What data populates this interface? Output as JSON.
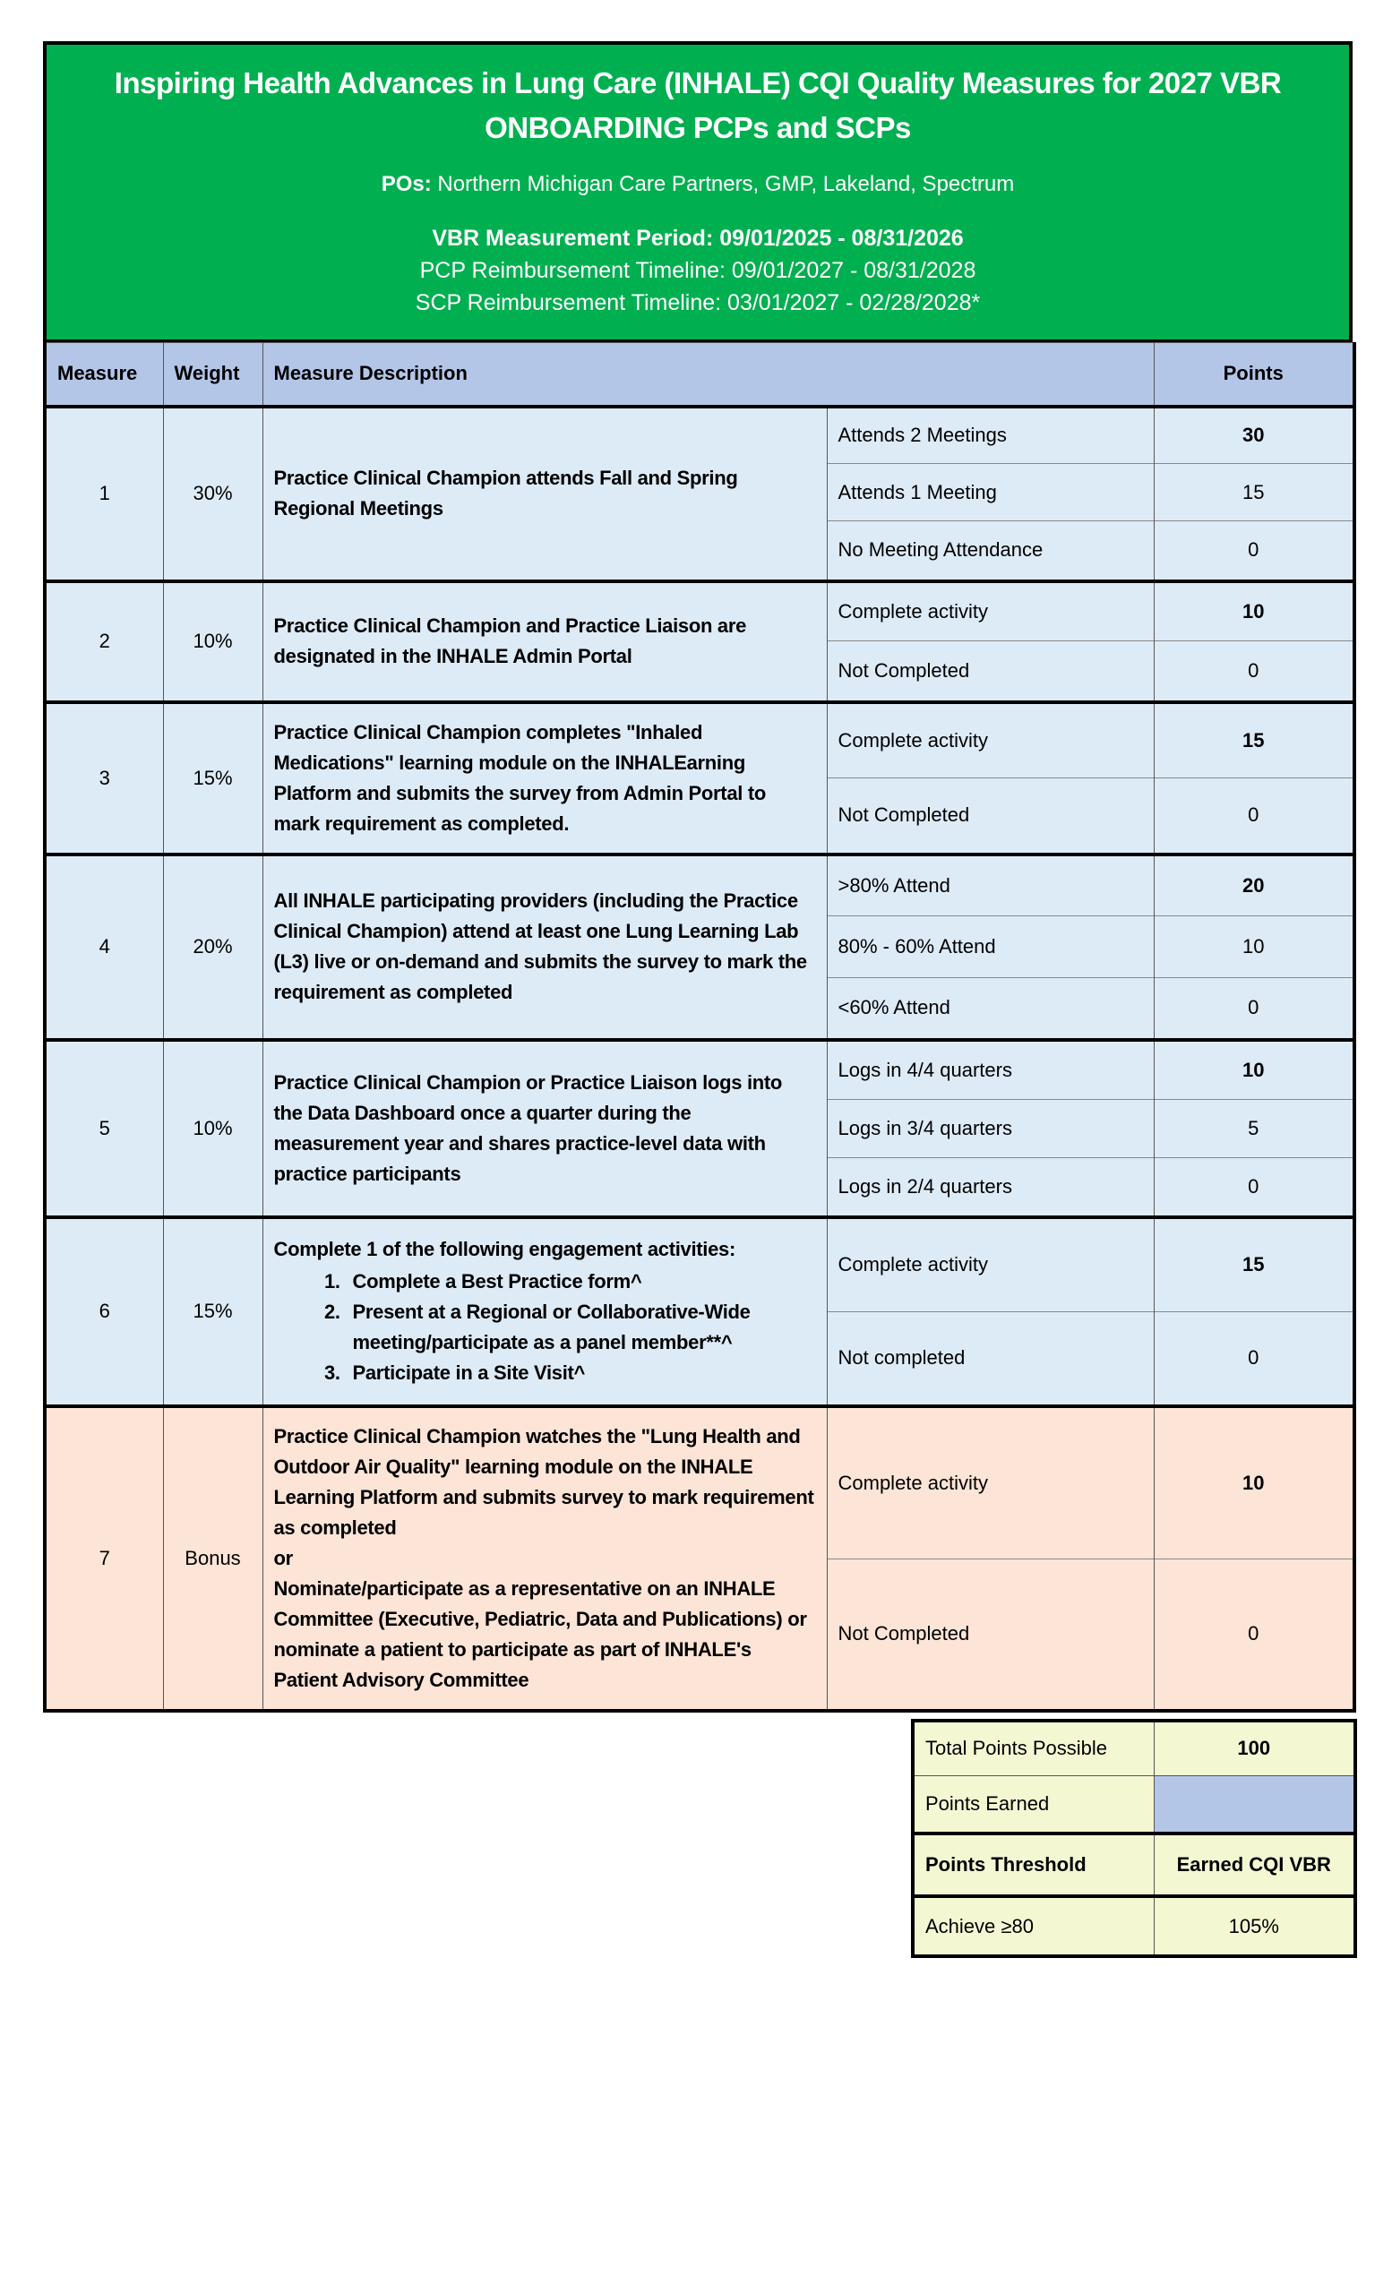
{
  "header": {
    "title": "Inspiring Health Advances in Lung Care (INHALE) CQI Quality Measures for 2027 VBR ONBOARDING PCPs and SCPs",
    "pos_label": "POs:",
    "pos_value": "Northern Michigan Care Partners, GMP, Lakeland, Spectrum",
    "measurement_period": "VBR Measurement Period: 09/01/2025 - 08/31/2026",
    "pcp_timeline": "PCP Reimbursement Timeline: 09/01/2027 - 08/31/2028",
    "scp_timeline": "SCP Reimbursement Timeline: 03/01/2027 - 02/28/2028*"
  },
  "columns": {
    "measure": "Measure",
    "weight": "Weight",
    "description": "Measure Description",
    "points": "Points"
  },
  "colors": {
    "header_green": "#00AF50",
    "column_header_blue": "#B4C6E7",
    "row_blue": "#DDEBF7",
    "bonus_peach": "#FCE4D6",
    "totals_yellow": "#F3F8D3"
  },
  "measures": [
    {
      "measure": "1",
      "weight": "30%",
      "style": "blue",
      "description": {
        "paragraphs": [
          "Practice Clinical Champion attends Fall and Spring Regional Meetings"
        ]
      },
      "options": [
        {
          "label": "Attends 2 Meetings",
          "points": "30",
          "bold": true
        },
        {
          "label": "Attends 1 Meeting",
          "points": "15"
        },
        {
          "label": "No Meeting Attendance",
          "points": "0"
        }
      ]
    },
    {
      "measure": "2",
      "weight": "10%",
      "style": "blue",
      "description": {
        "paragraphs": [
          "Practice Clinical Champion and Practice Liaison are designated in the INHALE Admin Portal"
        ]
      },
      "options": [
        {
          "label": "Complete activity",
          "points": "10",
          "bold": true
        },
        {
          "label": "Not Completed",
          "points": "0"
        }
      ]
    },
    {
      "measure": "3",
      "weight": "15%",
      "style": "blue",
      "description": {
        "paragraphs": [
          "Practice Clinical Champion completes \"Inhaled Medications\" learning module on the INHALEarning Platform and submits the survey from Admin Portal to mark requirement as completed."
        ]
      },
      "options": [
        {
          "label": "Complete activity",
          "points": "15",
          "bold": true
        },
        {
          "label": "Not Completed",
          "points": "0"
        }
      ]
    },
    {
      "measure": "4",
      "weight": "20%",
      "style": "blue",
      "description": {
        "paragraphs": [
          "All INHALE participating providers (including the Practice Clinical Champion) attend at least one Lung Learning Lab (L3) live or on-demand and submits the survey to mark the requirement as completed"
        ]
      },
      "options": [
        {
          "label": ">80% Attend",
          "points": "20",
          "bold": true
        },
        {
          "label": "80% - 60% Attend",
          "points": "10"
        },
        {
          "label": "<60% Attend",
          "points": "0"
        }
      ]
    },
    {
      "measure": "5",
      "weight": "10%",
      "style": "blue",
      "description": {
        "paragraphs": [
          "Practice Clinical Champion or Practice Liaison logs into the Data Dashboard once a quarter during the measurement year and shares practice-level data with practice participants"
        ]
      },
      "options": [
        {
          "label": "Logs in 4/4 quarters",
          "points": "10",
          "bold": true
        },
        {
          "label": "Logs in 3/4 quarters",
          "points": "5"
        },
        {
          "label": "Logs in 2/4 quarters",
          "points": "0"
        }
      ]
    },
    {
      "measure": "6",
      "weight": "15%",
      "style": "blue",
      "description": {
        "paragraphs": [
          "Complete 1 of the following engagement activities:"
        ],
        "list": [
          "Complete a Best Practice form^",
          "Present at a Regional or Collaborative-Wide meeting/participate as a panel member**^",
          "Participate in a Site Visit^"
        ]
      },
      "options": [
        {
          "label": "Complete activity",
          "points": "15",
          "bold": true
        },
        {
          "label": "Not completed",
          "points": "0"
        }
      ]
    },
    {
      "measure": "7",
      "weight": "Bonus",
      "style": "peach",
      "description": {
        "paragraphs": [
          "Practice Clinical Champion watches the \"Lung Health and Outdoor Air Quality\" learning module on the INHALE Learning Platform and submits survey to mark requirement as completed",
          "or",
          "Nominate/participate as a representative on an INHALE Committee (Executive, Pediatric, Data and Publications) or nominate a patient to participate as part of INHALE's Patient Advisory Committee"
        ]
      },
      "options": [
        {
          "label": "Complete activity",
          "points": "10",
          "bold": true
        },
        {
          "label": "Not Completed",
          "points": "0"
        }
      ]
    }
  ],
  "totals": {
    "total_label": "Total Points Possible",
    "total_value": "100",
    "earned_label": "Points Earned",
    "earned_value": "",
    "threshold_label": "Points Threshold",
    "vbr_label": "Earned CQI VBR",
    "achieve_label": "Achieve ≥80",
    "achieve_value": "105%"
  }
}
